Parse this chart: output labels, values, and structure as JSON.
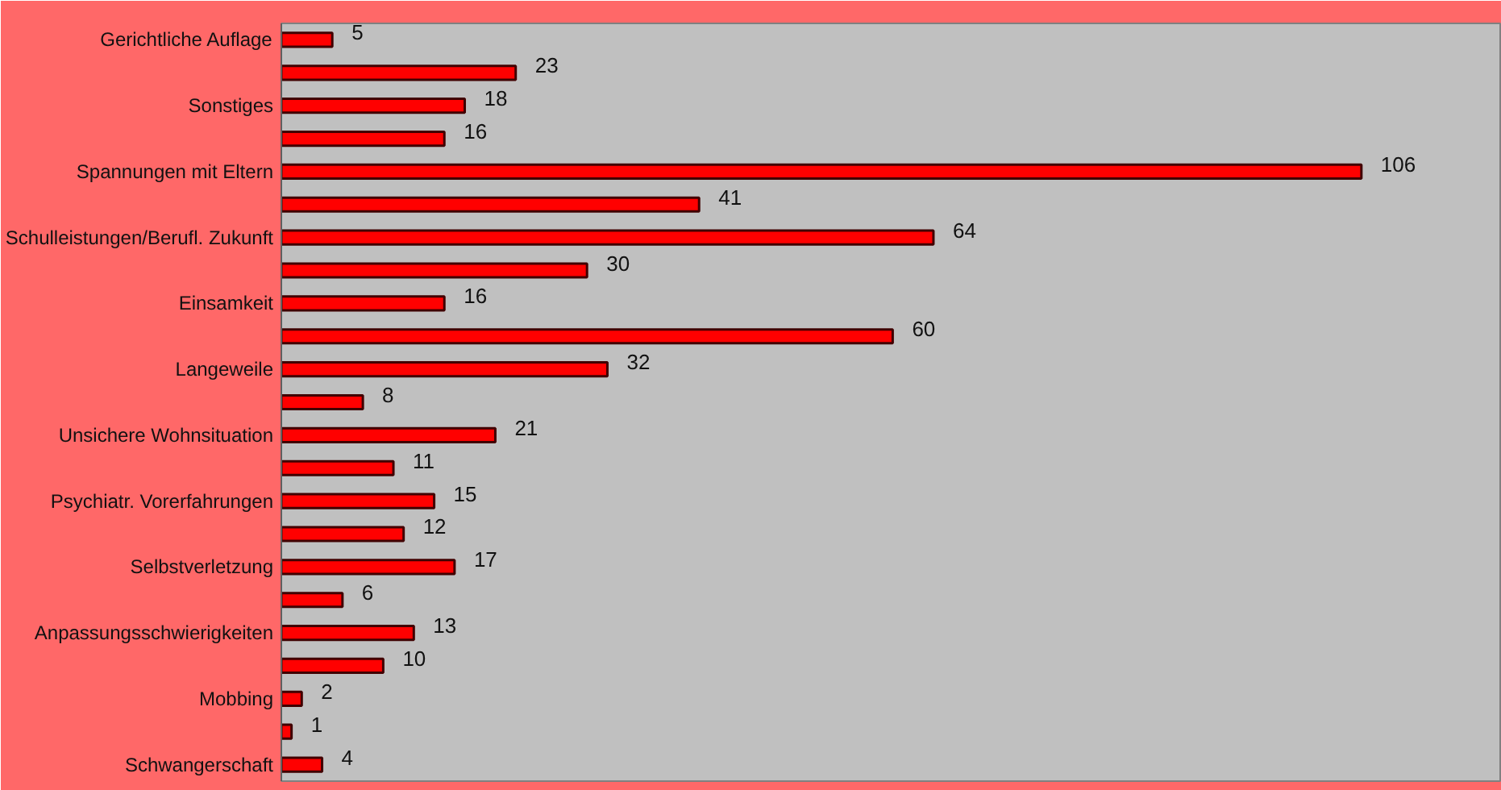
{
  "chart_data": {
    "type": "bar",
    "orientation": "horizontal",
    "data_labels": true,
    "grid": false,
    "color": "#ff0000",
    "categories": [
      "Gerichtliche Auflage",
      null,
      "Sonstiges",
      null,
      "Spannungen mit Eltern",
      null,
      "Schulleistungen/Berufl. Zukunft",
      null,
      "Einsamkeit",
      null,
      "Langeweile",
      null,
      "Unsichere Wohnsituation",
      null,
      "Psychiatr. Vorerfahrungen",
      null,
      "Selbstverletzung",
      null,
      "Anpassungsschwierigkeiten",
      null,
      "Mobbing",
      null,
      "Schwangerschaft"
    ],
    "values": [
      5,
      23,
      18,
      16,
      106,
      41,
      64,
      30,
      16,
      60,
      32,
      8,
      21,
      11,
      15,
      12,
      17,
      6,
      13,
      10,
      2,
      1,
      4
    ]
  }
}
